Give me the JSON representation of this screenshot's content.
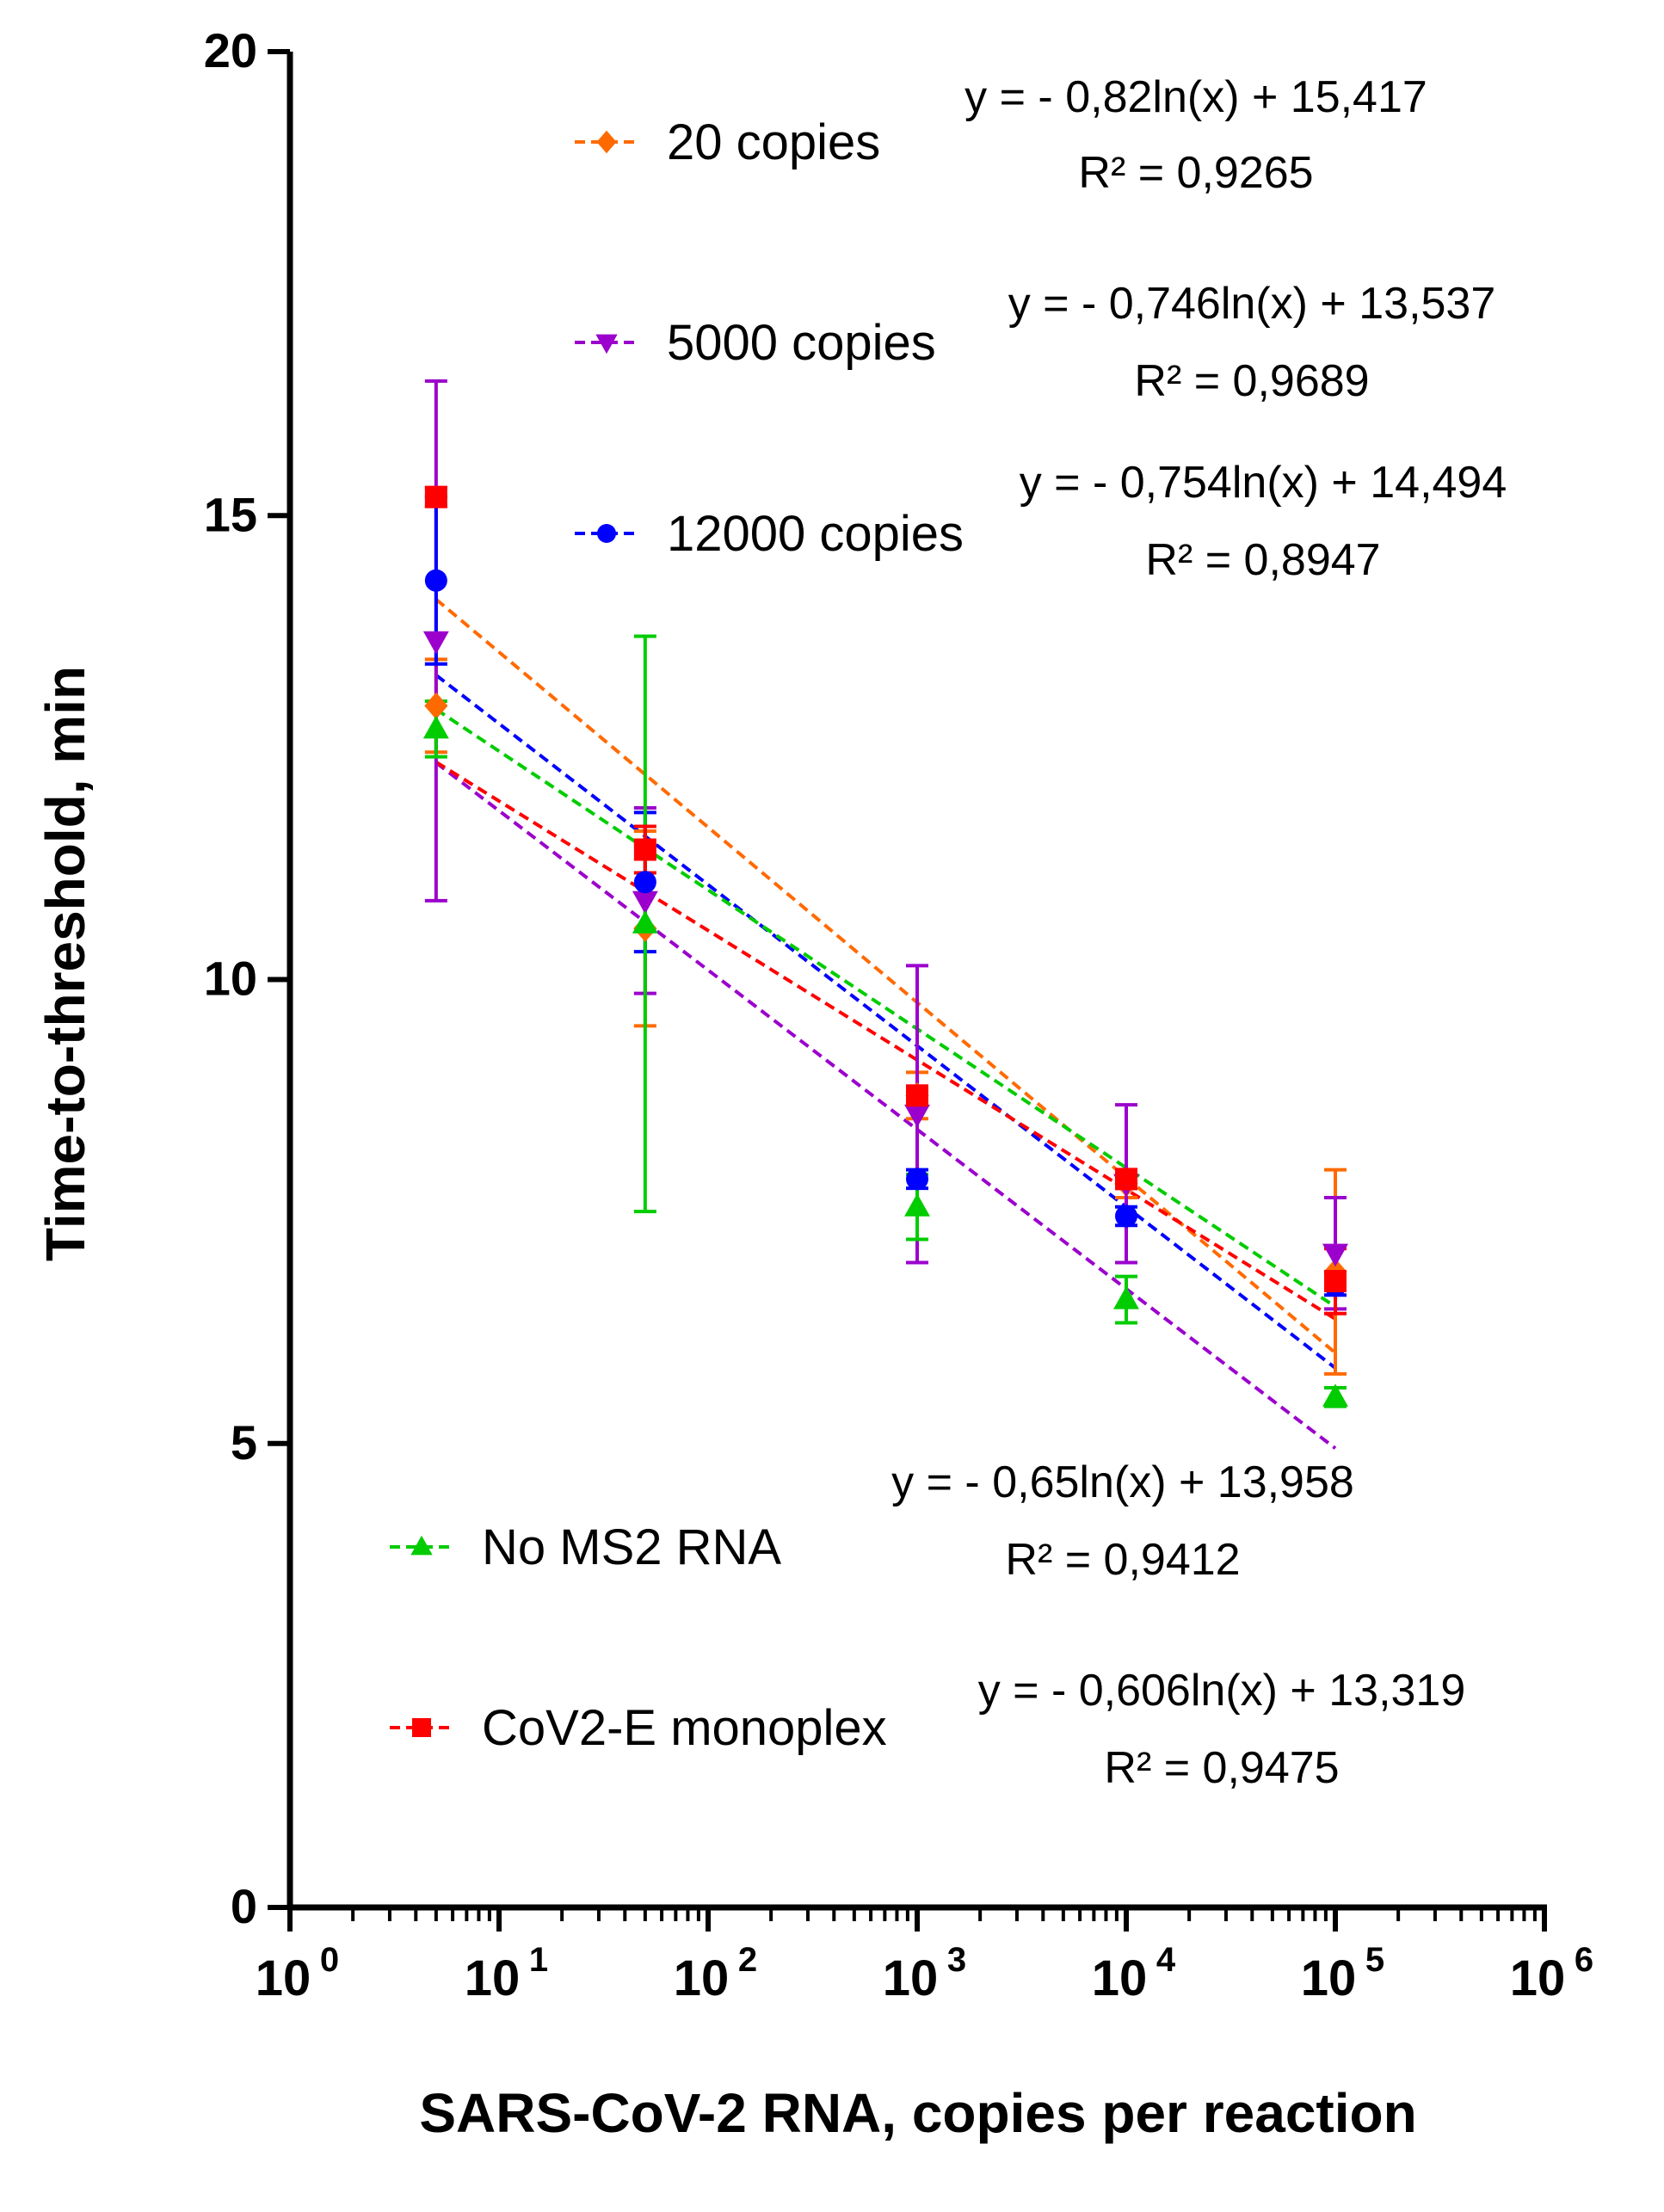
{
  "chart_data": {
    "type": "scatter",
    "xscale": "log",
    "xlim": [
      1,
      1000000
    ],
    "ylim": [
      0,
      20
    ],
    "xlabel": "SARS-CoV-2 RNA, copies per reaction",
    "ylabel": "Time-to-threshold, min",
    "yticks": [
      0,
      5,
      10,
      15,
      20
    ],
    "xticks": [
      {
        "base": "10",
        "exp": "0",
        "value": 1
      },
      {
        "base": "10",
        "exp": "1",
        "value": 10
      },
      {
        "base": "10",
        "exp": "2",
        "value": 100
      },
      {
        "base": "10",
        "exp": "3",
        "value": 1000
      },
      {
        "base": "10",
        "exp": "4",
        "value": 10000
      },
      {
        "base": "10",
        "exp": "5",
        "value": 100000
      },
      {
        "base": "10",
        "exp": "6",
        "value": 1000000
      }
    ],
    "series": [
      {
        "name": "20 copies",
        "color": "#ff6a00",
        "marker": "diamond",
        "x": [
          5,
          50,
          1000,
          10000,
          100000
        ],
        "y": [
          12.95,
          10.55,
          8.75,
          7.8,
          6.85
        ],
        "err": [
          0.5,
          1.05,
          0.25,
          0.15,
          1.1
        ],
        "fit": {
          "slope": -0.82,
          "intercept": 15.417,
          "equation": "y = - 0,82ln(x) + 15,417",
          "r2": "R² = 0,9265"
        }
      },
      {
        "name": "5000 copies",
        "color": "#9b00cc",
        "marker": "triangle-down",
        "x": [
          5,
          50,
          1000,
          10000,
          100000
        ],
        "y": [
          13.65,
          10.85,
          8.55,
          7.8,
          7.05
        ],
        "err": [
          2.8,
          1.0,
          1.6,
          0.85,
          0.6
        ],
        "fit": {
          "slope": -0.746,
          "intercept": 13.537,
          "equation": "y = - 0,746ln(x) + 13,537",
          "r2": "R² = 0,9689"
        }
      },
      {
        "name": "12000 copies",
        "color": "#0000ff",
        "marker": "circle",
        "x": [
          5,
          50,
          1000,
          10000,
          100000
        ],
        "y": [
          14.3,
          11.05,
          7.85,
          7.45,
          6.7
        ],
        "err": [
          0.9,
          0.75,
          0.1,
          0.1,
          0.1
        ],
        "fit": {
          "slope": -0.754,
          "intercept": 14.494,
          "equation": "y = - 0,754ln(x) + 14,494",
          "r2": "R² = 0,8947"
        }
      },
      {
        "name": "No MS2 RNA",
        "color": "#00cc00",
        "marker": "triangle-up",
        "x": [
          5,
          50,
          1000,
          10000,
          100000
        ],
        "y": [
          12.7,
          10.6,
          7.55,
          6.55,
          5.5
        ],
        "err": [
          0.3,
          3.1,
          0.35,
          0.25,
          0.1
        ],
        "fit": {
          "slope": -0.65,
          "intercept": 13.958,
          "equation": "y = - 0,65ln(x) + 13,958",
          "r2": "R² = 0,9412"
        }
      },
      {
        "name": "CoV2-E monoplex",
        "color": "#ff0000",
        "marker": "square",
        "x": [
          5,
          50,
          1000,
          10000,
          100000
        ],
        "y": [
          15.2,
          11.4,
          8.75,
          7.85,
          6.75
        ],
        "err": [
          0.1,
          0.25,
          0.1,
          0.1,
          0.35
        ],
        "fit": {
          "slope": -0.606,
          "intercept": 13.319,
          "equation": "y = - 0,606ln(x) + 13,319",
          "r2": "R² = 0,9475"
        }
      }
    ]
  }
}
